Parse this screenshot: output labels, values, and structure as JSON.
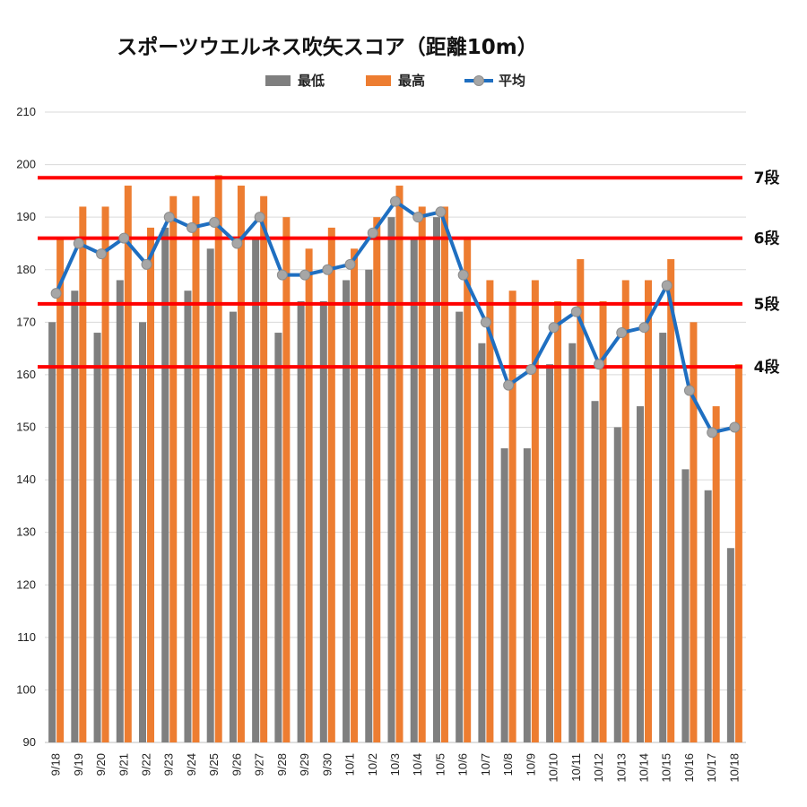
{
  "chart_data": {
    "type": "bar",
    "title": "スポーツウエルネス吹矢スコア（距離10m）",
    "categories": [
      "9/18",
      "9/19",
      "9/20",
      "9/21",
      "9/22",
      "9/23",
      "9/24",
      "9/25",
      "9/26",
      "9/27",
      "9/28",
      "9/29",
      "9/30",
      "10/1",
      "10/2",
      "10/3",
      "10/4",
      "10/5",
      "10/6",
      "10/7",
      "10/8",
      "10/9",
      "10/10",
      "10/11",
      "10/12",
      "10/13",
      "10/14",
      "10/15",
      "10/16",
      "10/17",
      "10/18"
    ],
    "series": [
      {
        "name": "最低",
        "kind": "bar",
        "color": "#7f7f7f",
        "values": [
          170,
          176,
          168,
          178,
          170,
          188,
          176,
          184,
          172,
          186,
          168,
          174,
          174,
          178,
          180,
          190,
          186,
          190,
          172,
          166,
          146,
          146,
          162,
          166,
          155,
          150,
          154,
          168,
          142,
          138,
          127
        ]
      },
      {
        "name": "最高",
        "kind": "bar",
        "color": "#ed7d31",
        "values": [
          186,
          192,
          192,
          196,
          188,
          194,
          194,
          198,
          196,
          194,
          190,
          184,
          188,
          184,
          190,
          196,
          192,
          192,
          186,
          178,
          176,
          178,
          174,
          182,
          174,
          178,
          178,
          182,
          170,
          154,
          162
        ]
      },
      {
        "name": "平均",
        "kind": "line",
        "color": "#1f6fc1",
        "marker_color": "#a6a6a6",
        "values": [
          175.5,
          185,
          183,
          186,
          181,
          190,
          188,
          189,
          185,
          190,
          179,
          179,
          180,
          181,
          187,
          193,
          190,
          191,
          179,
          170,
          158,
          161,
          169,
          172,
          162,
          168,
          169,
          177,
          157,
          149,
          150
        ]
      }
    ],
    "ylim": [
      90,
      210
    ],
    "yticks": [
      90,
      100,
      110,
      120,
      130,
      140,
      150,
      160,
      170,
      180,
      190,
      200,
      210
    ],
    "grid": true,
    "legend_position": "top-center",
    "reference_lines": [
      {
        "label": "7段",
        "value": 197.5,
        "color": "#ff0000"
      },
      {
        "label": "6段",
        "value": 186,
        "color": "#ff0000"
      },
      {
        "label": "5段",
        "value": 173.5,
        "color": "#ff0000"
      },
      {
        "label": "4段",
        "value": 161.5,
        "color": "#ff0000"
      }
    ]
  }
}
